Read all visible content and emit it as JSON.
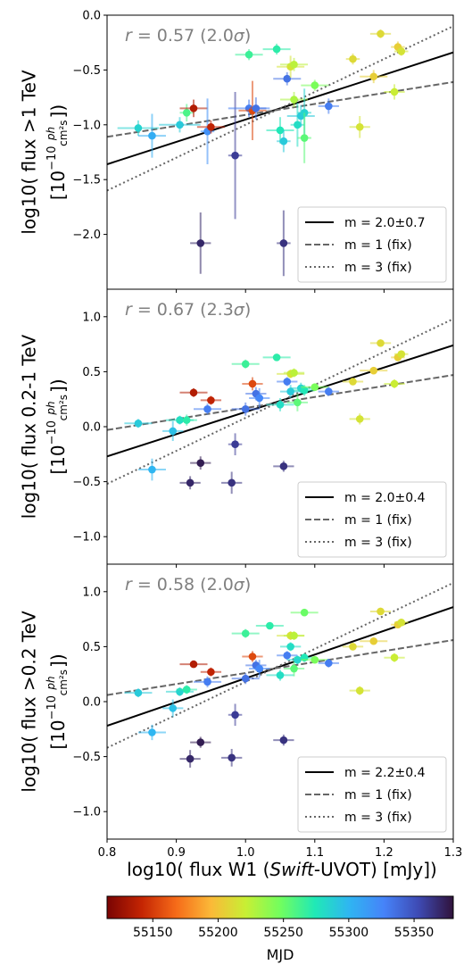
{
  "chart_data": [
    {
      "type": "scatter",
      "ylabel_line1": "log10( flux >1 TeV",
      "ylabel_line2": "[10",
      "ylabel_exp": "−10",
      "ylabel_unit_num": "ph",
      "ylabel_unit_den": "cm²s",
      "ylabel_close": "])",
      "ylim": [
        -2.5,
        0.0
      ],
      "yticks": [
        0.0,
        -0.5,
        -1.0,
        -1.5,
        -2.0
      ],
      "ytick_labels": [
        "0.0",
        "−0.5",
        "−1.0",
        "−1.5",
        "−2.0"
      ],
      "annotation_prefix": "r",
      "annotation_value": " = 0.57 (2.0",
      "annotation_sigma": "σ",
      "annotation_close": ")",
      "lines": [
        {
          "label": "m = 2.0±0.7",
          "style": "solid",
          "color": "#000000",
          "x": [
            0.8,
            1.3
          ],
          "y": [
            -1.36,
            -0.34
          ]
        },
        {
          "label": "m = 1 (fix)",
          "style": "dashed",
          "color": "#666666",
          "x": [
            0.8,
            1.3
          ],
          "y": [
            -1.11,
            -0.61
          ]
        },
        {
          "label": "m = 3 (fix)",
          "style": "dotted",
          "color": "#666666",
          "x": [
            0.8,
            1.3
          ],
          "y": [
            -1.6,
            -0.1
          ]
        }
      ],
      "points": [
        {
          "x": 0.845,
          "y": -1.03,
          "mjd": 55285,
          "xe": 0.03,
          "ye": 0.07
        },
        {
          "x": 0.865,
          "y": -1.1,
          "mjd": 55305,
          "xe": 0.02,
          "ye": 0.2
        },
        {
          "x": 0.905,
          "y": -1.0,
          "mjd": 55290,
          "xe": 0.03,
          "ye": 0.07
        },
        {
          "x": 0.915,
          "y": -0.89,
          "mjd": 55260,
          "xe": 0.01,
          "ye": 0.08
        },
        {
          "x": 0.925,
          "y": -0.85,
          "mjd": 55135,
          "xe": 0.02,
          "ye": 0.08
        },
        {
          "x": 0.935,
          "y": -2.08,
          "mjd": 55370,
          "xe": 0.015,
          "ye": 0.28
        },
        {
          "x": 0.945,
          "y": -1.06,
          "mjd": 55320,
          "xe": 0.01,
          "ye": 0.3
        },
        {
          "x": 0.95,
          "y": -1.02,
          "mjd": 55140,
          "xe": 0.02,
          "ye": 0.06
        },
        {
          "x": 0.985,
          "y": -1.28,
          "mjd": 55360,
          "xe": 0.01,
          "ye": 0.58
        },
        {
          "x": 1.005,
          "y": -0.36,
          "mjd": 55265,
          "xe": 0.02,
          "ye": 0.05
        },
        {
          "x": 1.005,
          "y": -0.85,
          "mjd": 55330,
          "xe": 0.03,
          "ye": 0.08
        },
        {
          "x": 1.01,
          "y": -0.87,
          "mjd": 55155,
          "xe": 0.02,
          "ye": 0.27
        },
        {
          "x": 1.015,
          "y": -0.85,
          "mjd": 55335,
          "xe": 0.015,
          "ye": 0.1
        },
        {
          "x": 1.045,
          "y": -0.31,
          "mjd": 55270,
          "xe": 0.02,
          "ye": 0.05
        },
        {
          "x": 1.05,
          "y": -1.05,
          "mjd": 55275,
          "xe": 0.02,
          "ye": 0.12
        },
        {
          "x": 1.055,
          "y": -2.08,
          "mjd": 55365,
          "xe": 0.01,
          "ye": 0.3
        },
        {
          "x": 1.055,
          "y": -1.15,
          "mjd": 55290,
          "xe": 0.01,
          "ye": 0.1
        },
        {
          "x": 1.06,
          "y": -0.58,
          "mjd": 55335,
          "xe": 0.02,
          "ye": 0.06
        },
        {
          "x": 1.065,
          "y": -0.47,
          "mjd": 55215,
          "xe": 0.02,
          "ye": 0.1
        },
        {
          "x": 1.07,
          "y": -0.45,
          "mjd": 55225,
          "xe": 0.02,
          "ye": 0.06
        },
        {
          "x": 1.07,
          "y": -0.77,
          "mjd": 55230,
          "xe": 0.02,
          "ye": 0.07
        },
        {
          "x": 1.075,
          "y": -1.0,
          "mjd": 55280,
          "xe": 0.01,
          "ye": 0.2
        },
        {
          "x": 1.08,
          "y": -0.92,
          "mjd": 55290,
          "xe": 0.02,
          "ye": 0.1
        },
        {
          "x": 1.085,
          "y": -0.89,
          "mjd": 55285,
          "xe": 0.01,
          "ye": 0.22
        },
        {
          "x": 1.085,
          "y": -1.12,
          "mjd": 55255,
          "xe": 0.01,
          "ye": 0.23
        },
        {
          "x": 1.1,
          "y": -0.64,
          "mjd": 55245,
          "xe": 0.02,
          "ye": 0.05
        },
        {
          "x": 1.12,
          "y": -0.83,
          "mjd": 55330,
          "xe": 0.015,
          "ye": 0.07
        },
        {
          "x": 1.155,
          "y": -0.4,
          "mjd": 55210,
          "xe": 0.01,
          "ye": 0.05
        },
        {
          "x": 1.165,
          "y": -1.02,
          "mjd": 55215,
          "xe": 0.015,
          "ye": 0.1
        },
        {
          "x": 1.185,
          "y": -0.56,
          "mjd": 55205,
          "xe": 0.02,
          "ye": 0.06
        },
        {
          "x": 1.195,
          "y": -0.17,
          "mjd": 55210,
          "xe": 0.015,
          "ye": 0.04
        },
        {
          "x": 1.215,
          "y": -0.7,
          "mjd": 55220,
          "xe": 0.015,
          "ye": 0.07
        },
        {
          "x": 1.22,
          "y": -0.29,
          "mjd": 55205,
          "xe": 0.01,
          "ye": 0.05
        },
        {
          "x": 1.225,
          "y": -0.33,
          "mjd": 55215,
          "xe": 0.01,
          "ye": 0.04
        }
      ]
    },
    {
      "type": "scatter",
      "ylabel_line1": "log10( flux 0.2-1 TeV",
      "ylabel_line2": "[10",
      "ylabel_exp": "−10",
      "ylabel_unit_num": "ph",
      "ylabel_unit_den": "cm²s",
      "ylabel_close": "])",
      "ylim": [
        -1.25,
        1.25
      ],
      "yticks": [
        1.0,
        0.5,
        0.0,
        -0.5,
        -1.0
      ],
      "ytick_labels": [
        "1.0",
        "0.5",
        "0.0",
        "−0.5",
        "−1.0"
      ],
      "annotation_prefix": "r",
      "annotation_value": " = 0.67 (2.3",
      "annotation_sigma": "σ",
      "annotation_close": ")",
      "lines": [
        {
          "label": "m = 2.0±0.4",
          "style": "solid",
          "color": "#000000",
          "x": [
            0.8,
            1.3
          ],
          "y": [
            -0.27,
            0.74
          ]
        },
        {
          "label": "m = 1 (fix)",
          "style": "dashed",
          "color": "#666666",
          "x": [
            0.8,
            1.3
          ],
          "y": [
            -0.03,
            0.47
          ]
        },
        {
          "label": "m = 3 (fix)",
          "style": "dotted",
          "color": "#666666",
          "x": [
            0.8,
            1.3
          ],
          "y": [
            -0.52,
            0.98
          ]
        }
      ],
      "points": [
        {
          "x": 0.845,
          "y": 0.03,
          "mjd": 55290,
          "xe": 0.02,
          "ye": 0.04
        },
        {
          "x": 0.865,
          "y": -0.39,
          "mjd": 55300,
          "xe": 0.02,
          "ye": 0.1
        },
        {
          "x": 0.895,
          "y": -0.04,
          "mjd": 55295,
          "xe": 0.015,
          "ye": 0.09
        },
        {
          "x": 0.905,
          "y": 0.06,
          "mjd": 55280,
          "xe": 0.02,
          "ye": 0.04
        },
        {
          "x": 0.915,
          "y": 0.06,
          "mjd": 55270,
          "xe": 0.015,
          "ye": 0.05
        },
        {
          "x": 0.92,
          "y": -0.51,
          "mjd": 55370,
          "xe": 0.015,
          "ye": 0.06
        },
        {
          "x": 0.925,
          "y": 0.31,
          "mjd": 55135,
          "xe": 0.02,
          "ye": 0.04
        },
        {
          "x": 0.935,
          "y": -0.33,
          "mjd": 55375,
          "xe": 0.015,
          "ye": 0.06
        },
        {
          "x": 0.945,
          "y": 0.16,
          "mjd": 55330,
          "xe": 0.02,
          "ye": 0.05
        },
        {
          "x": 0.95,
          "y": 0.24,
          "mjd": 55140,
          "xe": 0.015,
          "ye": 0.04
        },
        {
          "x": 0.98,
          "y": -0.51,
          "mjd": 55365,
          "xe": 0.015,
          "ye": 0.1
        },
        {
          "x": 0.985,
          "y": -0.16,
          "mjd": 55360,
          "xe": 0.01,
          "ye": 0.1
        },
        {
          "x": 1.0,
          "y": 0.57,
          "mjd": 55265,
          "xe": 0.02,
          "ye": 0.04
        },
        {
          "x": 1.0,
          "y": 0.16,
          "mjd": 55335,
          "xe": 0.02,
          "ye": 0.06
        },
        {
          "x": 1.01,
          "y": 0.39,
          "mjd": 55155,
          "xe": 0.015,
          "ye": 0.06
        },
        {
          "x": 1.015,
          "y": 0.3,
          "mjd": 55335,
          "xe": 0.015,
          "ye": 0.06
        },
        {
          "x": 1.02,
          "y": 0.26,
          "mjd": 55325,
          "xe": 0.015,
          "ye": 0.09
        },
        {
          "x": 1.045,
          "y": 0.63,
          "mjd": 55270,
          "xe": 0.02,
          "ye": 0.03
        },
        {
          "x": 1.05,
          "y": 0.2,
          "mjd": 55280,
          "xe": 0.02,
          "ye": 0.06
        },
        {
          "x": 1.055,
          "y": -0.36,
          "mjd": 55365,
          "xe": 0.015,
          "ye": 0.05
        },
        {
          "x": 1.06,
          "y": 0.41,
          "mjd": 55330,
          "xe": 0.015,
          "ye": 0.04
        },
        {
          "x": 1.065,
          "y": 0.32,
          "mjd": 55290,
          "xe": 0.015,
          "ye": 0.06
        },
        {
          "x": 1.065,
          "y": 0.48,
          "mjd": 55215,
          "xe": 0.02,
          "ye": 0.04
        },
        {
          "x": 1.07,
          "y": 0.49,
          "mjd": 55225,
          "xe": 0.015,
          "ye": 0.04
        },
        {
          "x": 1.075,
          "y": 0.22,
          "mjd": 55255,
          "xe": 0.015,
          "ye": 0.08
        },
        {
          "x": 1.08,
          "y": 0.35,
          "mjd": 55285,
          "xe": 0.015,
          "ye": 0.05
        },
        {
          "x": 1.085,
          "y": 0.33,
          "mjd": 55275,
          "xe": 0.015,
          "ye": 0.05
        },
        {
          "x": 1.1,
          "y": 0.36,
          "mjd": 55245,
          "xe": 0.02,
          "ye": 0.03
        },
        {
          "x": 1.12,
          "y": 0.32,
          "mjd": 55330,
          "xe": 0.015,
          "ye": 0.04
        },
        {
          "x": 1.155,
          "y": 0.41,
          "mjd": 55210,
          "xe": 0.015,
          "ye": 0.03
        },
        {
          "x": 1.165,
          "y": 0.07,
          "mjd": 55215,
          "xe": 0.015,
          "ye": 0.05
        },
        {
          "x": 1.185,
          "y": 0.51,
          "mjd": 55205,
          "xe": 0.02,
          "ye": 0.03
        },
        {
          "x": 1.195,
          "y": 0.76,
          "mjd": 55210,
          "xe": 0.015,
          "ye": 0.03
        },
        {
          "x": 1.215,
          "y": 0.39,
          "mjd": 55220,
          "xe": 0.015,
          "ye": 0.04
        },
        {
          "x": 1.22,
          "y": 0.63,
          "mjd": 55205,
          "xe": 0.01,
          "ye": 0.03
        },
        {
          "x": 1.225,
          "y": 0.66,
          "mjd": 55215,
          "xe": 0.01,
          "ye": 0.03
        }
      ]
    },
    {
      "type": "scatter",
      "ylabel_line1": "log10( flux >0.2 TeV",
      "ylabel_line2": "[10",
      "ylabel_exp": "−10",
      "ylabel_unit_num": "ph",
      "ylabel_unit_den": "cm²s",
      "ylabel_close": "])",
      "ylim": [
        -1.25,
        1.25
      ],
      "yticks": [
        1.0,
        0.5,
        0.0,
        -0.5,
        -1.0
      ],
      "ytick_labels": [
        "1.0",
        "0.5",
        "0.0",
        "−0.5",
        "−1.0"
      ],
      "annotation_prefix": "r",
      "annotation_value": " = 0.58 (2.0",
      "annotation_sigma": "σ",
      "annotation_close": ")",
      "xlim": [
        0.8,
        1.3
      ],
      "xticks": [
        0.8,
        0.9,
        1.0,
        1.1,
        1.2,
        1.3
      ],
      "xtick_labels": [
        "0.8",
        "0.9",
        "1.0",
        "1.1",
        "1.2",
        "1.3"
      ],
      "xlabel_prefix": "log10( flux W1 (",
      "xlabel_italic": "Swift",
      "xlabel_suffix": "-UVOT) [mJy])",
      "lines": [
        {
          "label": "m = 2.2±0.4",
          "style": "solid",
          "color": "#000000",
          "x": [
            0.8,
            1.3
          ],
          "y": [
            -0.22,
            0.86
          ]
        },
        {
          "label": "m = 1 (fix)",
          "style": "dashed",
          "color": "#666666",
          "x": [
            0.8,
            1.3
          ],
          "y": [
            0.06,
            0.56
          ]
        },
        {
          "label": "m = 3 (fix)",
          "style": "dotted",
          "color": "#666666",
          "x": [
            0.8,
            1.3
          ],
          "y": [
            -0.42,
            1.08
          ]
        }
      ],
      "points": [
        {
          "x": 0.845,
          "y": 0.08,
          "mjd": 55290,
          "xe": 0.02,
          "ye": 0.04
        },
        {
          "x": 0.865,
          "y": -0.28,
          "mjd": 55300,
          "xe": 0.02,
          "ye": 0.07
        },
        {
          "x": 0.895,
          "y": -0.06,
          "mjd": 55295,
          "xe": 0.015,
          "ye": 0.08
        },
        {
          "x": 0.905,
          "y": 0.09,
          "mjd": 55285,
          "xe": 0.02,
          "ye": 0.04
        },
        {
          "x": 0.915,
          "y": 0.11,
          "mjd": 55270,
          "xe": 0.015,
          "ye": 0.04
        },
        {
          "x": 0.92,
          "y": -0.52,
          "mjd": 55370,
          "xe": 0.015,
          "ye": 0.08
        },
        {
          "x": 0.925,
          "y": 0.34,
          "mjd": 55135,
          "xe": 0.02,
          "ye": 0.03
        },
        {
          "x": 0.935,
          "y": -0.37,
          "mjd": 55375,
          "xe": 0.015,
          "ye": 0.05
        },
        {
          "x": 0.945,
          "y": 0.18,
          "mjd": 55330,
          "xe": 0.02,
          "ye": 0.05
        },
        {
          "x": 0.95,
          "y": 0.27,
          "mjd": 55140,
          "xe": 0.015,
          "ye": 0.04
        },
        {
          "x": 0.98,
          "y": -0.51,
          "mjd": 55365,
          "xe": 0.015,
          "ye": 0.08
        },
        {
          "x": 0.985,
          "y": -0.12,
          "mjd": 55360,
          "xe": 0.01,
          "ye": 0.1
        },
        {
          "x": 1.0,
          "y": 0.62,
          "mjd": 55265,
          "xe": 0.02,
          "ye": 0.04
        },
        {
          "x": 1.0,
          "y": 0.21,
          "mjd": 55335,
          "xe": 0.02,
          "ye": 0.05
        },
        {
          "x": 1.01,
          "y": 0.41,
          "mjd": 55155,
          "xe": 0.015,
          "ye": 0.05
        },
        {
          "x": 1.015,
          "y": 0.33,
          "mjd": 55335,
          "xe": 0.015,
          "ye": 0.05
        },
        {
          "x": 1.02,
          "y": 0.3,
          "mjd": 55325,
          "xe": 0.015,
          "ye": 0.08
        },
        {
          "x": 1.035,
          "y": 0.69,
          "mjd": 55270,
          "xe": 0.02,
          "ye": 0.03
        },
        {
          "x": 1.05,
          "y": 0.24,
          "mjd": 55280,
          "xe": 0.02,
          "ye": 0.05
        },
        {
          "x": 1.055,
          "y": -0.35,
          "mjd": 55365,
          "xe": 0.015,
          "ye": 0.05
        },
        {
          "x": 1.06,
          "y": 0.42,
          "mjd": 55330,
          "xe": 0.015,
          "ye": 0.04
        },
        {
          "x": 1.065,
          "y": 0.5,
          "mjd": 55280,
          "xe": 0.015,
          "ye": 0.04
        },
        {
          "x": 1.065,
          "y": 0.6,
          "mjd": 55215,
          "xe": 0.02,
          "ye": 0.04
        },
        {
          "x": 1.07,
          "y": 0.6,
          "mjd": 55225,
          "xe": 0.015,
          "ye": 0.04
        },
        {
          "x": 1.07,
          "y": 0.3,
          "mjd": 55255,
          "xe": 0.015,
          "ye": 0.07
        },
        {
          "x": 1.075,
          "y": 0.38,
          "mjd": 55285,
          "xe": 0.015,
          "ye": 0.04
        },
        {
          "x": 1.085,
          "y": 0.81,
          "mjd": 55250,
          "xe": 0.02,
          "ye": 0.03
        },
        {
          "x": 1.085,
          "y": 0.4,
          "mjd": 55275,
          "xe": 0.015,
          "ye": 0.04
        },
        {
          "x": 1.1,
          "y": 0.38,
          "mjd": 55245,
          "xe": 0.02,
          "ye": 0.03
        },
        {
          "x": 1.12,
          "y": 0.35,
          "mjd": 55330,
          "xe": 0.015,
          "ye": 0.04
        },
        {
          "x": 1.155,
          "y": 0.5,
          "mjd": 55210,
          "xe": 0.015,
          "ye": 0.03
        },
        {
          "x": 1.165,
          "y": 0.1,
          "mjd": 55215,
          "xe": 0.015,
          "ye": 0.04
        },
        {
          "x": 1.185,
          "y": 0.55,
          "mjd": 55205,
          "xe": 0.02,
          "ye": 0.03
        },
        {
          "x": 1.195,
          "y": 0.82,
          "mjd": 55210,
          "xe": 0.015,
          "ye": 0.03
        },
        {
          "x": 1.215,
          "y": 0.4,
          "mjd": 55220,
          "xe": 0.015,
          "ye": 0.04
        },
        {
          "x": 1.22,
          "y": 0.7,
          "mjd": 55205,
          "xe": 0.01,
          "ye": 0.03
        },
        {
          "x": 1.225,
          "y": 0.72,
          "mjd": 55215,
          "xe": 0.01,
          "ye": 0.03
        }
      ]
    }
  ],
  "colorbar": {
    "label": "MJD",
    "range": [
      55115,
      55380
    ],
    "ticks": [
      55150,
      55200,
      55250,
      55300,
      55350
    ],
    "tick_labels": [
      "55150",
      "55200",
      "55250",
      "55300",
      "55350"
    ],
    "colormap": [
      "#7a0403",
      "#c42503",
      "#f66b19",
      "#fbb938",
      "#c8ef34",
      "#72fe5e",
      "#20e9b6",
      "#2fb5f2",
      "#4683f9",
      "#3e4ab3",
      "#30123b"
    ]
  }
}
